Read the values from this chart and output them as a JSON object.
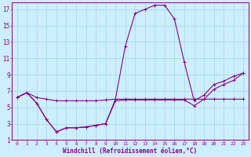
{
  "xlabel": "Windchill (Refroidissement éolien,°C)",
  "bg_color": "#cceeff",
  "grid_color": "#aadddd",
  "line_color": "#880088",
  "xlim": [
    -0.5,
    23.5
  ],
  "ylim": [
    1,
    17.8
  ],
  "yticks": [
    1,
    3,
    5,
    7,
    9,
    11,
    13,
    15,
    17
  ],
  "xticks": [
    0,
    1,
    2,
    3,
    4,
    5,
    6,
    7,
    8,
    9,
    10,
    11,
    12,
    13,
    14,
    15,
    16,
    17,
    18,
    19,
    20,
    21,
    22,
    23
  ],
  "line1_x": [
    0,
    1,
    2,
    3,
    4,
    5,
    6,
    7,
    8,
    9,
    10,
    11,
    12,
    13,
    14,
    15,
    16,
    17,
    18,
    19,
    20,
    21,
    22,
    23
  ],
  "line1_y": [
    6.2,
    6.8,
    6.2,
    6.0,
    5.8,
    5.8,
    5.8,
    5.8,
    5.8,
    5.9,
    6.0,
    6.0,
    6.0,
    6.0,
    6.0,
    6.0,
    6.0,
    6.0,
    6.0,
    6.0,
    6.0,
    6.0,
    6.0,
    6.0
  ],
  "line2_x": [
    0,
    1,
    2,
    3,
    4,
    5,
    6,
    7,
    8,
    9,
    10,
    11,
    12,
    13,
    14,
    15,
    16,
    17,
    18,
    19,
    20,
    21,
    22,
    23
  ],
  "line2_y": [
    6.2,
    6.8,
    5.5,
    3.5,
    2.0,
    2.5,
    2.5,
    2.6,
    2.8,
    3.0,
    6.0,
    12.5,
    16.5,
    17.0,
    17.5,
    17.5,
    15.8,
    10.5,
    5.8,
    6.5,
    7.8,
    8.2,
    8.8,
    9.2
  ],
  "line3_x": [
    0,
    1,
    2,
    3,
    4,
    5,
    6,
    7,
    8,
    9,
    10,
    11,
    12,
    13,
    14,
    15,
    16,
    17,
    18,
    19,
    20,
    21,
    22,
    23
  ],
  "line3_y": [
    6.2,
    6.8,
    5.5,
    3.5,
    2.0,
    2.5,
    2.5,
    2.6,
    2.8,
    3.0,
    5.8,
    5.9,
    5.9,
    5.9,
    5.9,
    5.9,
    5.9,
    5.9,
    5.2,
    6.0,
    7.2,
    7.8,
    8.3,
    9.2
  ],
  "lw": 0.8,
  "ms": 3.0
}
